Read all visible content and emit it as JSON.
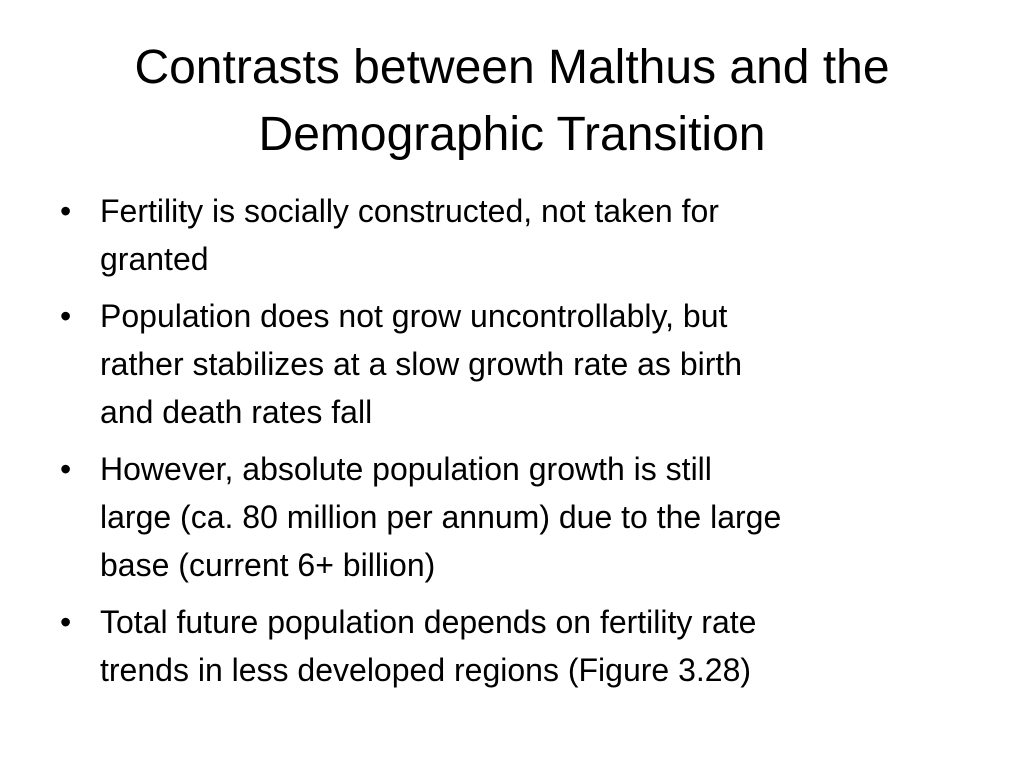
{
  "slide": {
    "title": "Contrasts between Malthus and the Demographic Transition",
    "bullets": [
      {
        "lines": [
          "Fertility is socially constructed, not taken for",
          "granted"
        ]
      },
      {
        "lines": [
          "Population does not grow uncontrollably, but",
          "rather stabilizes at a slow growth rate as birth",
          "and death rates fall"
        ]
      },
      {
        "lines": [
          "However, absolute population growth is still",
          "large (ca. 80 million per annum) due to the large",
          "base (current 6+ billion)"
        ]
      },
      {
        "lines": [
          "Total future population depends on fertility rate",
          "trends in less developed regions (Figure 3.28)"
        ]
      }
    ]
  }
}
